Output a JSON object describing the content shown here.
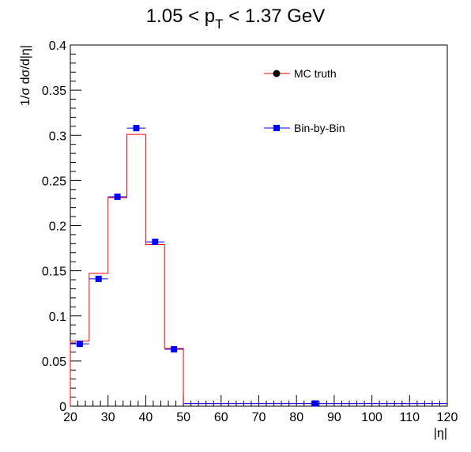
{
  "chart_data": {
    "type": "line",
    "title_main": "1.05 < p",
    "title_sub": "T",
    "title_rest": " < 1.37 GeV",
    "xlabel": "|η|",
    "ylabel": "1/σ dσ/d|η|",
    "xlim": [
      20,
      120
    ],
    "ylim": [
      0,
      0.4
    ],
    "xticks": [
      20,
      30,
      40,
      50,
      60,
      70,
      80,
      90,
      100,
      110,
      120
    ],
    "xtick_labels": [
      "20",
      "30",
      "40",
      "50",
      "60",
      "70",
      "80",
      "90",
      "100",
      "110",
      "120"
    ],
    "yticks": [
      0,
      0.05,
      0.1,
      0.15,
      0.2,
      0.25,
      0.3,
      0.35,
      0.4
    ],
    "ytick_labels": [
      "0",
      "0.05",
      "0.1",
      "0.15",
      "0.2",
      "0.25",
      "0.3",
      "0.35",
      "0.4"
    ],
    "legend_position": "top-right",
    "colors": {
      "mc_truth": "#ff0000",
      "bin_by_bin": "#0000ff"
    },
    "series": [
      {
        "name": "MC truth",
        "style": "histogram",
        "bin_edges": [
          20,
          25,
          30,
          35,
          40,
          45,
          50,
          120
        ],
        "values": [
          0.072,
          0.147,
          0.231,
          0.301,
          0.179,
          0.064,
          0.003
        ]
      },
      {
        "name": "Bin-by-Bin",
        "style": "markers",
        "x": [
          22.5,
          27.5,
          32.5,
          37.5,
          42.5,
          47.5,
          85
        ],
        "xerr": [
          2.5,
          2.5,
          2.5,
          2.5,
          2.5,
          2.5,
          35
        ],
        "values": [
          0.069,
          0.141,
          0.232,
          0.308,
          0.182,
          0.063,
          0.003
        ]
      }
    ]
  }
}
